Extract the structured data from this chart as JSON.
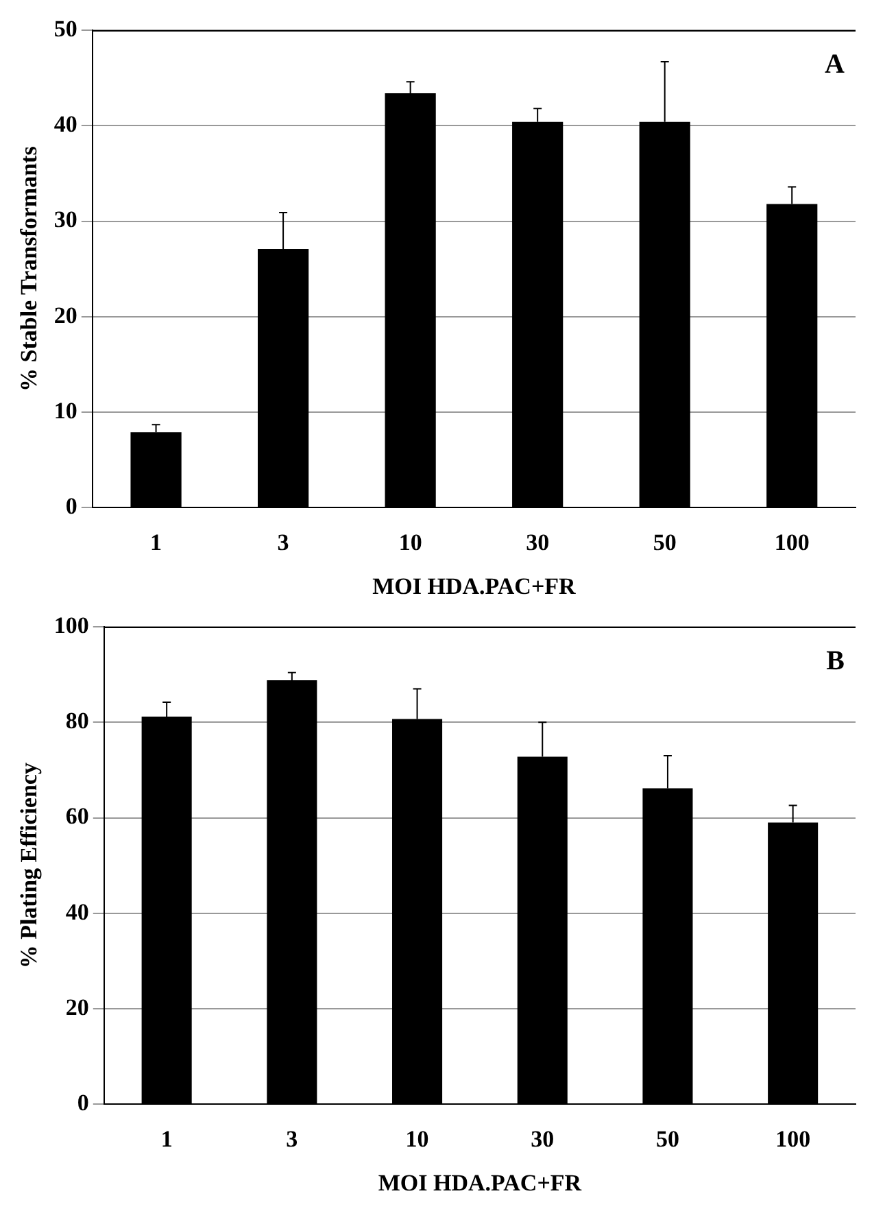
{
  "chart_data": [
    {
      "type": "bar",
      "categories": [
        "1",
        "3",
        "10",
        "30",
        "50",
        "100"
      ],
      "values": [
        7.9,
        27.1,
        43.4,
        40.4,
        40.4,
        31.8
      ],
      "color": "#000000",
      "errors": [
        [
          7.9,
          8.7
        ],
        [
          27.1,
          30.9
        ],
        [
          43.4,
          44.6
        ],
        [
          40.4,
          41.8
        ],
        [
          40.4,
          46.7
        ],
        [
          31.8,
          33.6
        ]
      ],
      "xlabel": "MOI HDA.PAC+FR",
      "ylabel": "% Stable Transformants",
      "annotations": [
        "A"
      ],
      "ylim": [
        0,
        50
      ],
      "yticks": [
        0,
        10,
        20,
        30,
        40,
        50
      ],
      "grid": "y",
      "legend": false
    },
    {
      "type": "bar",
      "categories": [
        "1",
        "3",
        "10",
        "30",
        "50",
        "100"
      ],
      "values": [
        81.2,
        88.8,
        80.7,
        72.8,
        66.2,
        59.0
      ],
      "color": "#000000",
      "errors": [
        [
          81.2,
          84.2
        ],
        [
          88.8,
          90.4
        ],
        [
          80.7,
          87.0
        ],
        [
          72.8,
          80.0
        ],
        [
          66.2,
          73.0
        ],
        [
          59.0,
          62.6
        ]
      ],
      "xlabel": "MOI HDA.PAC+FR",
      "ylabel": "% Plating Efficiency",
      "annotations": [
        "B"
      ],
      "ylim": [
        0,
        100
      ],
      "yticks": [
        0,
        20,
        40,
        60,
        80,
        100
      ],
      "grid": "y",
      "legend": false
    }
  ]
}
